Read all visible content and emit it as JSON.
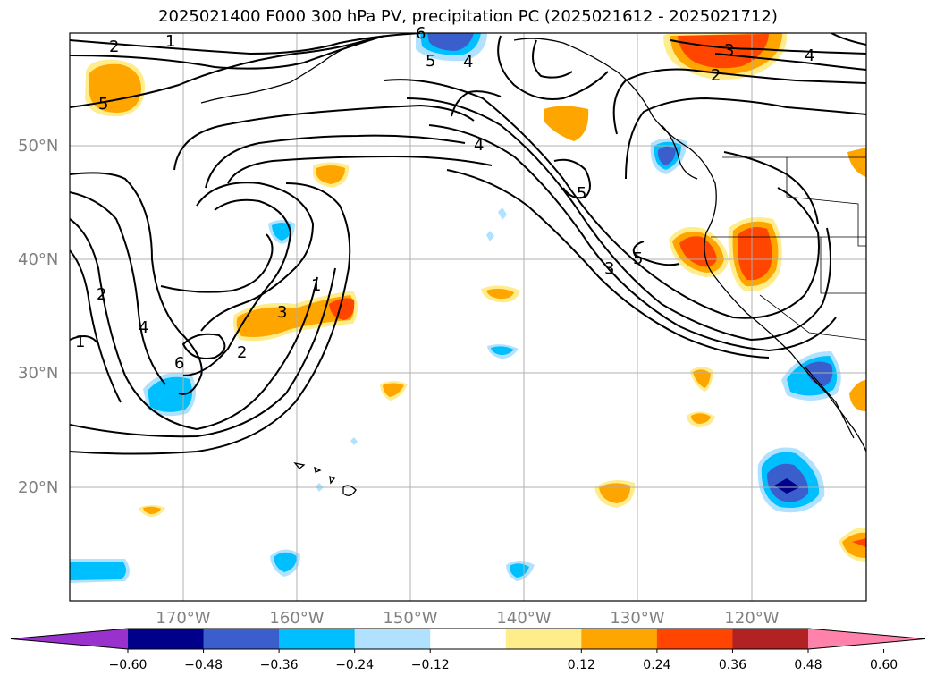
{
  "title": "2025021400 F000 300 hPa PV, precipitation PC (2025021612 - 2025021712)",
  "map": {
    "lat_ticks": [
      "20°N",
      "30°N",
      "40°N",
      "50°N"
    ],
    "lon_ticks": [
      "170°W",
      "160°W",
      "150°W",
      "140°W",
      "130°W",
      "120°W"
    ],
    "grid": true,
    "background": "#ffffff",
    "contour_color": "#000000",
    "contour_labels": [
      "2",
      "1",
      "5",
      "6",
      "4",
      "2",
      "1",
      "3",
      "5",
      "4",
      "3",
      "5",
      "2",
      "4",
      "5",
      "6",
      "4",
      "3",
      "2",
      "1"
    ]
  },
  "colorbar": {
    "ticks": [
      "−0.60",
      "−0.48",
      "−0.36",
      "−0.24",
      "−0.12",
      "0.12",
      "0.24",
      "0.36",
      "0.48",
      "0.60"
    ],
    "colors": [
      "#9932cc",
      "#00008b",
      "#3a5fcd",
      "#00bfff",
      "#b0e2ff",
      "#ffffff",
      "#ffec8b",
      "#ffa500",
      "#ff4500",
      "#b22222",
      "#ff82ab"
    ],
    "extend": "both"
  }
}
